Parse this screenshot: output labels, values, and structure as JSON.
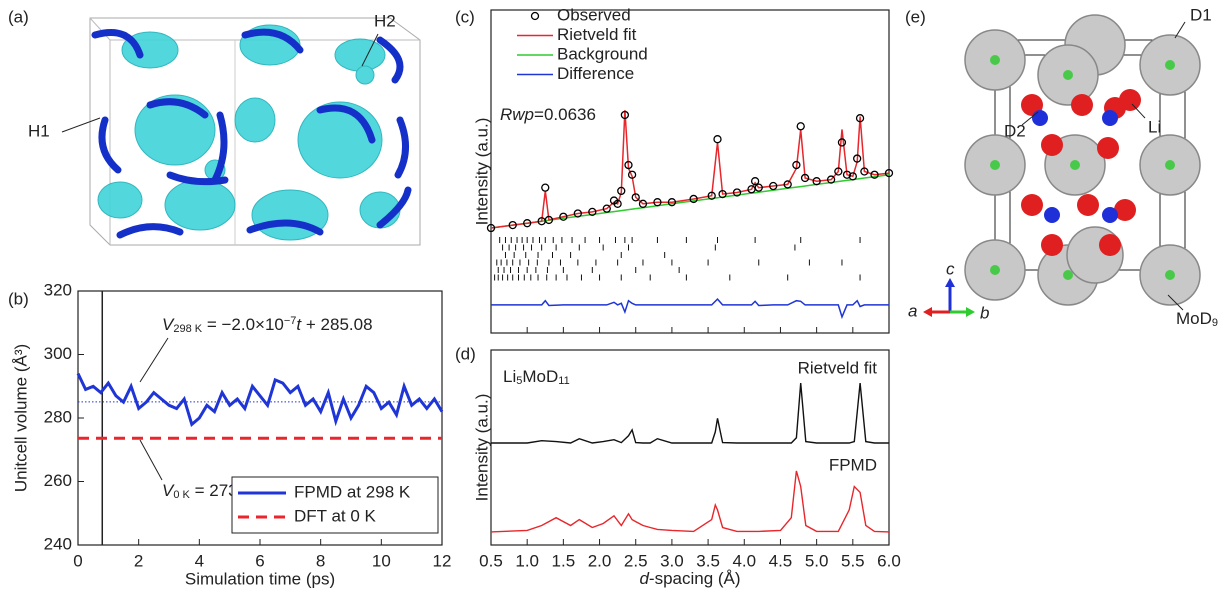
{
  "images": [
    {
      "panel_label": "(a)",
      "labels": [
        "H1",
        "H2"
      ]
    },
    {
      "panel_label": "(e)",
      "labels": [
        "D1",
        "D2",
        "Li"
      ],
      "label_parts": [
        "MoD",
        "9"
      ],
      "axes": [
        "a",
        "b",
        "c"
      ]
    }
  ],
  "chart_data": [
    {
      "type": "line",
      "panel_label": "(b)",
      "xlabel": "Simulation time (ps)",
      "ylabel": "Unitcell volume (Å³)",
      "xlim": [
        0,
        12
      ],
      "ylim": [
        240,
        320
      ],
      "xticks": [
        0,
        2,
        4,
        6,
        8,
        10,
        12
      ],
      "yticks": [
        240,
        260,
        280,
        300,
        320
      ],
      "legend": "lower right",
      "series": [
        {
          "name": "FPMD at 298 K",
          "color": "#1f35d6",
          "line_style": "solid",
          "x": [
            0,
            0.25,
            0.5,
            0.75,
            1,
            1.25,
            1.5,
            1.75,
            2,
            2.25,
            2.5,
            2.75,
            3,
            3.25,
            3.5,
            3.75,
            4,
            4.25,
            4.5,
            4.75,
            5,
            5.25,
            5.5,
            5.75,
            6,
            6.25,
            6.5,
            6.75,
            7,
            7.25,
            7.5,
            7.75,
            8,
            8.25,
            8.5,
            8.75,
            9,
            9.25,
            9.5,
            9.75,
            10,
            10.25,
            10.5,
            10.75,
            11,
            11.25,
            11.5,
            11.75,
            12
          ],
          "values": [
            294,
            289,
            290,
            288,
            291,
            287,
            285,
            290,
            283,
            285,
            288,
            286,
            284,
            283,
            286,
            278,
            280,
            284,
            282,
            288,
            284,
            286,
            283,
            290,
            287,
            284,
            292,
            291,
            288,
            290,
            284,
            286,
            282,
            288,
            279,
            286,
            280,
            284,
            290,
            288,
            283,
            285,
            281,
            290,
            284,
            286,
            283,
            286,
            282
          ]
        },
        {
          "name": "DFT at 0 K",
          "color": "#e8262b",
          "line_style": "dashed",
          "x": [
            0,
            12
          ],
          "values": [
            273.64,
            273.64
          ]
        }
      ],
      "fit_line": {
        "x": [
          0,
          12
        ],
        "values": [
          285.08,
          285.08
        ],
        "color": "#1f35d6"
      },
      "x_marker": 0.8,
      "annotations": [
        {
          "parts": [
            "V",
            "298 K",
            " = −2.0×10",
            "−7",
            "t",
            " + 285.08"
          ]
        },
        {
          "parts": [
            "V",
            "0 K",
            " = 273.64"
          ]
        }
      ]
    },
    {
      "type": "xrd",
      "panel_label": "(c)",
      "ylabel": "Intensity (a.u.)",
      "xlim": [
        0.5,
        6.0
      ],
      "ylim": [
        0,
        100
      ],
      "legend": "upper left",
      "annotation_parts": [
        "Rwp",
        "=0.0636"
      ],
      "x": [
        0.5,
        0.8,
        1.0,
        1.2,
        1.25,
        1.3,
        1.5,
        1.7,
        1.9,
        2.1,
        2.2,
        2.25,
        2.3,
        2.35,
        2.4,
        2.45,
        2.5,
        2.6,
        2.8,
        3.0,
        3.3,
        3.55,
        3.63,
        3.7,
        3.9,
        4.1,
        4.15,
        4.2,
        4.4,
        4.6,
        4.72,
        4.78,
        4.84,
        5.0,
        5.2,
        5.3,
        5.35,
        5.42,
        5.5,
        5.56,
        5.6,
        5.66,
        5.8,
        6.0
      ],
      "series": [
        {
          "name": "Observed",
          "color": "#000000",
          "style": "markers",
          "values": [
            32.5,
            33.4,
            34,
            34.6,
            45,
            35,
            36,
            37,
            37.5,
            38.5,
            41,
            40,
            44,
            67.5,
            52,
            49,
            42,
            40,
            40.5,
            40.5,
            41.5,
            42.5,
            60,
            43,
            43.5,
            44.5,
            47,
            45,
            45.5,
            46,
            52,
            64,
            48,
            47,
            47.5,
            50,
            59,
            49,
            48.5,
            54,
            66.5,
            50,
            49,
            49.5
          ]
        },
        {
          "name": "Rietveld fit",
          "color": "#e8262b",
          "style": "line",
          "values": [
            32.5,
            33.4,
            34,
            34.6,
            44,
            35,
            36,
            37,
            37.5,
            38.5,
            40.5,
            40,
            43.5,
            69,
            51,
            48.5,
            42,
            40,
            40.5,
            40.5,
            41.5,
            42.5,
            59,
            43,
            43.5,
            44.5,
            46.5,
            45,
            45.5,
            46,
            51,
            63,
            48,
            47,
            47.5,
            50,
            63,
            49,
            48.5,
            53,
            67,
            50,
            49,
            49.5
          ]
        },
        {
          "name": "Background",
          "color": "#2ecc2e",
          "style": "line",
          "values": [
            32.5,
            33.4,
            34,
            34.6,
            34.75,
            34.9,
            35.5,
            36.1,
            36.7,
            37.3,
            37.6,
            37.75,
            37.9,
            38.05,
            38.2,
            38.35,
            38.5,
            38.8,
            39.4,
            40,
            40.9,
            41.65,
            41.89,
            42.1,
            42.7,
            43.3,
            43.45,
            43.6,
            44.2,
            44.8,
            45.16,
            45.34,
            45.52,
            46,
            46.6,
            46.9,
            47.05,
            47.26,
            47.5,
            47.68,
            47.8,
            47.98,
            48.4,
            49
          ]
        },
        {
          "name": "Difference",
          "color": "#1f35d6",
          "style": "line",
          "values": [
            8.7,
            8.7,
            8.7,
            8.7,
            10,
            8.5,
            8.7,
            8.7,
            8.7,
            8.7,
            9.5,
            8.7,
            9.2,
            6.5,
            10,
            9.2,
            8.7,
            8.7,
            8.7,
            8.7,
            8.7,
            8.7,
            10.5,
            8.7,
            8.7,
            8.7,
            9.8,
            8.5,
            8.7,
            8.7,
            10,
            9.8,
            8.7,
            8.7,
            8.7,
            8.7,
            5,
            8.7,
            8.7,
            10,
            8.2,
            8.7,
            8.7,
            8.7
          ]
        }
      ],
      "reflections": [
        [
          0.62,
          0.7,
          0.78,
          0.86,
          0.93,
          1.0,
          1.08,
          1.17,
          1.25,
          1.36,
          1.48,
          1.62,
          1.8,
          2.0,
          2.22,
          2.35,
          2.45,
          2.8,
          3.2,
          3.63,
          4.15,
          4.78,
          5.6
        ],
        [
          0.66,
          0.75,
          0.84,
          0.95,
          1.06,
          1.2,
          1.4,
          1.72,
          2.05,
          2.4,
          3.6,
          4.7
        ],
        [
          0.7,
          0.82,
          0.98,
          1.15,
          1.35,
          1.6,
          2.3,
          2.9
        ],
        [
          0.58,
          0.64,
          0.72,
          0.8,
          0.9,
          1.02,
          1.14,
          1.3,
          1.46,
          1.7,
          1.95,
          2.25,
          2.6,
          3.0,
          3.5,
          4.2,
          4.9,
          5.35
        ],
        [
          0.6,
          0.68,
          0.77,
          0.88,
          1.0,
          1.12,
          1.28,
          1.5,
          1.9,
          2.5,
          3.1
        ],
        [
          0.55,
          0.6,
          0.66,
          0.73,
          0.8,
          0.88,
          0.96,
          1.05,
          1.15,
          1.27,
          1.4,
          1.55,
          1.75,
          2.0,
          2.3,
          2.7,
          3.2,
          3.8,
          4.6,
          5.6
        ]
      ]
    },
    {
      "type": "line",
      "panel_label": "(d)",
      "ylabel": "Intensity (a.u.)",
      "xlabel_parts": [
        "d",
        "-spacing (Å)"
      ],
      "xlim": [
        0.5,
        6.0
      ],
      "ylim": [
        0,
        100
      ],
      "xticks": [
        0.5,
        {
          "value": 1,
          "label": "1.0"
        },
        1.5,
        {
          "value": 2,
          "label": "2.0"
        },
        2.5,
        {
          "value": 3,
          "label": "3.0"
        },
        3.5,
        {
          "value": 4,
          "label": "4.0"
        },
        4.5,
        {
          "value": 5,
          "label": "5.0"
        },
        5.5,
        {
          "value": 6,
          "label": "6.0"
        }
      ],
      "x": [
        0.5,
        1.0,
        1.2,
        1.4,
        1.6,
        1.72,
        1.9,
        2.05,
        2.2,
        2.3,
        2.4,
        2.45,
        2.5,
        2.6,
        2.7,
        2.8,
        3.0,
        3.3,
        3.55,
        3.6,
        3.63,
        3.7,
        3.9,
        4.2,
        4.5,
        4.65,
        4.72,
        4.78,
        4.85,
        5.0,
        5.3,
        5.45,
        5.52,
        5.6,
        5.68,
        5.8,
        6.0
      ],
      "series": [
        {
          "name": "Rietveld fit",
          "color": "#111111",
          "values": [
            52.3,
            52.3,
            53.5,
            53,
            52.3,
            54.5,
            52.3,
            53,
            54,
            52.5,
            56,
            59,
            52.5,
            52.3,
            52.3,
            54.5,
            52.3,
            52.3,
            52.3,
            58,
            65,
            52.5,
            52.3,
            52.3,
            52.3,
            52.3,
            55,
            83,
            53,
            52.3,
            52.3,
            52.3,
            53,
            83,
            53,
            52.3,
            52.3
          ]
        },
        {
          "name": "FPMD",
          "color": "#e8262b",
          "values": [
            6.7,
            7.5,
            10,
            14,
            10,
            13,
            9,
            11,
            15,
            10,
            16,
            13,
            12,
            10,
            9,
            8,
            7.5,
            7,
            13,
            20.5,
            18,
            9,
            7,
            7,
            7.5,
            14,
            38,
            30,
            10,
            7,
            7,
            18,
            30,
            27,
            10,
            7,
            6.7
          ]
        }
      ],
      "compound_parts": [
        "Li",
        "5",
        "MoD",
        "11"
      ]
    }
  ]
}
